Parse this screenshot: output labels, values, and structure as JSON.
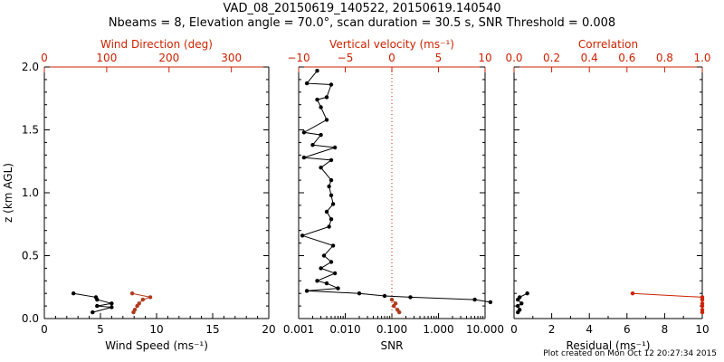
{
  "figure": {
    "title_line1": "VAD_08_20150619_140522, 20150619.140540",
    "title_line2": "Nbeams = 8, Elevation angle = 70.0°, scan duration = 30.5 s, SNR Threshold = 0.008",
    "credit": "Plot created on Mon Oct 12 20:27:34 2015"
  },
  "colors": {
    "primary": "#000000",
    "secondary": "#cc2200",
    "series_b": "#b03a1e"
  },
  "chart_data": [
    {
      "type": "line",
      "title": "",
      "ylabel": "z (km AGL)",
      "ylim": [
        0,
        2
      ],
      "y_ticks": [
        "0.0",
        "0.5",
        "1.0",
        "1.5",
        "2.0"
      ],
      "xlabel": "Wind Speed (ms⁻¹)",
      "xlim": [
        0,
        20
      ],
      "x_ticks": [
        "0",
        "5",
        "10",
        "15",
        "20"
      ],
      "top_xlabel": "Wind Direction (deg)",
      "top_xlim": [
        0,
        360
      ],
      "top_x_ticks": [
        "0",
        "100",
        "200",
        "300"
      ],
      "series": [
        {
          "name": "Wind Speed",
          "axis": "bottom",
          "color": "#000000",
          "points": [
            [
              2.6,
              0.2
            ],
            [
              4.6,
              0.17
            ],
            [
              4.7,
              0.15
            ],
            [
              6.0,
              0.12
            ],
            [
              4.7,
              0.1
            ],
            [
              6.0,
              0.09
            ],
            [
              4.3,
              0.05
            ]
          ]
        },
        {
          "name": "Wind Direction",
          "axis": "top",
          "color": "#b03a1e",
          "points": [
            [
              141,
              0.2
            ],
            [
              170,
              0.17
            ],
            [
              158,
              0.15
            ],
            [
              152,
              0.12
            ],
            [
              149,
              0.1
            ],
            [
              145,
              0.07
            ],
            [
              143,
              0.05
            ]
          ]
        }
      ]
    },
    {
      "type": "line",
      "title": "",
      "xlabel": "SNR",
      "xscale": "log",
      "xlim": [
        0.001,
        10
      ],
      "x_ticks": [
        "0.001",
        "0.010",
        "0.100",
        "1.000",
        "10.000"
      ],
      "top_xlabel": "Vertical velocity (ms⁻¹)",
      "top_xlim": [
        -10,
        10
      ],
      "top_x_ticks": [
        "−10",
        "−5",
        "0",
        "5",
        "10"
      ],
      "reference_line": {
        "axis": "top",
        "value": 0,
        "style": "dotted"
      },
      "series": [
        {
          "name": "SNR",
          "axis": "bottom",
          "color": "#000000",
          "points": [
            [
              0.0025,
              1.97
            ],
            [
              0.0015,
              1.87
            ],
            [
              0.005,
              1.86
            ],
            [
              0.004,
              1.76
            ],
            [
              0.0025,
              1.74
            ],
            [
              0.003,
              1.68
            ],
            [
              0.004,
              1.58
            ],
            [
              0.0013,
              1.48
            ],
            [
              0.003,
              1.46
            ],
            [
              0.002,
              1.38
            ],
            [
              0.006,
              1.36
            ],
            [
              0.0013,
              1.28
            ],
            [
              0.005,
              1.26
            ],
            [
              0.003,
              1.2
            ],
            [
              0.005,
              1.1
            ],
            [
              0.0045,
              1.05
            ],
            [
              0.005,
              0.98
            ],
            [
              0.0055,
              0.91
            ],
            [
              0.004,
              0.85
            ],
            [
              0.005,
              0.79
            ],
            [
              0.0045,
              0.73
            ],
            [
              0.0012,
              0.66
            ],
            [
              0.0055,
              0.58
            ],
            [
              0.0035,
              0.5
            ],
            [
              0.005,
              0.45
            ],
            [
              0.003,
              0.4
            ],
            [
              0.006,
              0.36
            ],
            [
              0.0025,
              0.3
            ],
            [
              0.004,
              0.28
            ],
            [
              0.007,
              0.24
            ],
            [
              0.0015,
              0.22
            ],
            [
              0.02,
              0.2
            ],
            [
              0.07,
              0.18
            ],
            [
              0.25,
              0.17
            ],
            [
              6.0,
              0.15
            ],
            [
              13.0,
              0.13
            ]
          ]
        },
        {
          "name": "Vertical velocity",
          "axis": "top",
          "color": "#b03a1e",
          "points": [
            [
              0,
              0.15
            ],
            [
              0.4,
              0.12
            ],
            [
              0.2,
              0.1
            ],
            [
              0.6,
              0.07
            ],
            [
              0.8,
              0.05
            ]
          ]
        }
      ]
    },
    {
      "type": "line",
      "title": "",
      "xlabel": "Residual (ms⁻¹)",
      "xlim": [
        0,
        10
      ],
      "x_ticks": [
        "0",
        "2",
        "4",
        "6",
        "8",
        "10"
      ],
      "top_xlabel": "Correlation",
      "top_xlim": [
        0,
        1
      ],
      "top_x_ticks": [
        "0.0",
        "0.2",
        "0.4",
        "0.6",
        "0.8",
        "1.0"
      ],
      "series": [
        {
          "name": "Residual",
          "axis": "bottom",
          "color": "#000000",
          "points": [
            [
              0.7,
              0.2
            ],
            [
              0.3,
              0.17
            ],
            [
              0.2,
              0.15
            ],
            [
              0.4,
              0.12
            ],
            [
              0.2,
              0.1
            ],
            [
              0.3,
              0.07
            ],
            [
              0.2,
              0.05
            ]
          ]
        },
        {
          "name": "Correlation",
          "axis": "top",
          "color": "#cc2200",
          "points": [
            [
              0.63,
              0.2
            ],
            [
              1.0,
              0.17
            ],
            [
              1.0,
              0.15
            ],
            [
              1.0,
              0.12
            ],
            [
              1.0,
              0.1
            ],
            [
              1.0,
              0.07
            ],
            [
              1.0,
              0.05
            ]
          ]
        }
      ]
    }
  ]
}
